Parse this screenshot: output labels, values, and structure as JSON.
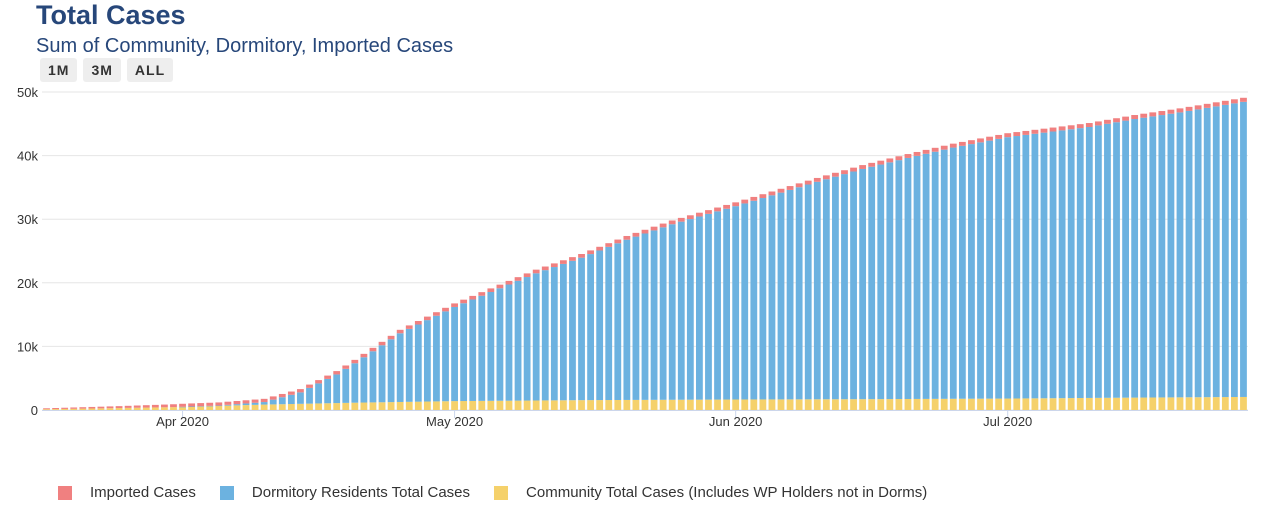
{
  "title": "Total Cases",
  "subtitle": "Sum of Community, Dormitory, Imported Cases",
  "range_buttons": [
    "1M",
    "3M",
    "ALL"
  ],
  "colors": {
    "imported": "#f08080",
    "dormitory": "#6cb2e0",
    "community": "#f5d16b",
    "grid": "#e6e6e6",
    "text": "#333333"
  },
  "chart_data": {
    "type": "bar",
    "stacked": true,
    "x_start": "2020-03-17",
    "x_end": "2020-07-27",
    "yticks": [
      "0",
      "10k",
      "20k",
      "30k",
      "40k",
      "50k"
    ],
    "ylim": [
      0,
      50000
    ],
    "xticks": [
      {
        "label": "Apr 2020",
        "date": "2020-04-01"
      },
      {
        "label": "May 2020",
        "date": "2020-05-01"
      },
      {
        "label": "Jun 2020",
        "date": "2020-06-01"
      },
      {
        "label": "Jul 2020",
        "date": "2020-07-01"
      }
    ],
    "series": [
      {
        "name": "Community Total Cases (Includes WP Holders not in Dorms)",
        "key": "community",
        "anchors": [
          [
            "2020-03-17",
            120
          ],
          [
            "2020-03-31",
            450
          ],
          [
            "2020-04-10",
            850
          ],
          [
            "2020-04-20",
            1150
          ],
          [
            "2020-05-01",
            1400
          ],
          [
            "2020-05-15",
            1550
          ],
          [
            "2020-06-01",
            1650
          ],
          [
            "2020-06-15",
            1700
          ],
          [
            "2020-07-01",
            1800
          ],
          [
            "2020-07-15",
            1950
          ],
          [
            "2020-07-27",
            2050
          ]
        ]
      },
      {
        "name": "Dormitory Residents Total Cases",
        "key": "dormitory",
        "anchors": [
          [
            "2020-03-17",
            0
          ],
          [
            "2020-03-31",
            0
          ],
          [
            "2020-04-05",
            50
          ],
          [
            "2020-04-10",
            400
          ],
          [
            "2020-04-14",
            1800
          ],
          [
            "2020-04-18",
            4500
          ],
          [
            "2020-04-20",
            6200
          ],
          [
            "2020-04-25",
            10800
          ],
          [
            "2020-05-01",
            14800
          ],
          [
            "2020-05-10",
            20000
          ],
          [
            "2020-05-15",
            22400
          ],
          [
            "2020-05-20",
            25200
          ],
          [
            "2020-05-25",
            27600
          ],
          [
            "2020-06-01",
            30400
          ],
          [
            "2020-06-10",
            34200
          ],
          [
            "2020-06-15",
            36200
          ],
          [
            "2020-06-20",
            37900
          ],
          [
            "2020-06-25",
            39500
          ],
          [
            "2020-07-01",
            41100
          ],
          [
            "2020-07-10",
            42600
          ],
          [
            "2020-07-15",
            43800
          ],
          [
            "2020-07-20",
            44800
          ],
          [
            "2020-07-27",
            46400
          ]
        ]
      },
      {
        "name": "Imported Cases",
        "key": "imported",
        "anchors": [
          [
            "2020-03-17",
            150
          ],
          [
            "2020-03-25",
            300
          ],
          [
            "2020-04-01",
            480
          ],
          [
            "2020-04-15",
            520
          ],
          [
            "2020-05-01",
            560
          ],
          [
            "2020-06-01",
            600
          ],
          [
            "2020-07-01",
            620
          ],
          [
            "2020-07-27",
            640
          ]
        ]
      }
    ],
    "legend_position": "bottom"
  },
  "legend": [
    {
      "label": "Imported Cases",
      "key": "imported"
    },
    {
      "label": "Dormitory Residents Total Cases",
      "key": "dormitory"
    },
    {
      "label": "Community Total Cases (Includes WP Holders not in Dorms)",
      "key": "community"
    }
  ]
}
